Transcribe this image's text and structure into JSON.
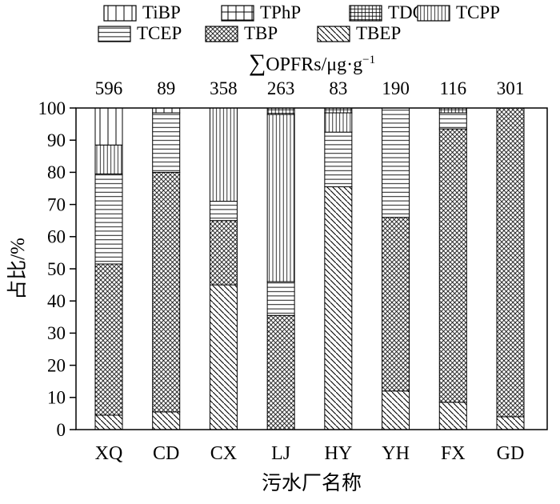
{
  "figure": {
    "background": "#ffffff",
    "ink_color": "#000000"
  },
  "legend": {
    "rows": [
      [
        {
          "label": "TiBP",
          "pattern": "vertical-sparse"
        },
        {
          "label": "TPhP",
          "pattern": "grid-sparse"
        },
        {
          "label": "TDCPP",
          "pattern": "grid-dense"
        },
        {
          "label": "TCPP",
          "pattern": "vertical-dense"
        }
      ],
      [
        {
          "label": "TCEP",
          "pattern": "horizontal"
        },
        {
          "label": "TBP",
          "pattern": "diagonal-cross"
        },
        {
          "label": "TBEP",
          "pattern": "diagonal"
        }
      ]
    ]
  },
  "secondary_axis": {
    "title_sigma": "∑",
    "title_main": "OPFRs/μg·g",
    "title_superscript": "−1",
    "totals": [
      "596",
      "89",
      "358",
      "263",
      "83",
      "190",
      "116",
      "301"
    ]
  },
  "chart_data": {
    "type": "bar",
    "stacked": true,
    "title": "∑OPFRs/μg·g⁻¹",
    "xlabel": "污水厂名称",
    "ylabel": "占比/%",
    "ylim": [
      0,
      100
    ],
    "yticks": [
      0,
      10,
      20,
      30,
      40,
      50,
      60,
      70,
      80,
      90,
      100
    ],
    "grid": false,
    "legend_position": "top",
    "categories": [
      "XQ",
      "CD",
      "CX",
      "LJ",
      "HY",
      "YH",
      "FX",
      "GD"
    ],
    "totals_ug_per_g": [
      596,
      89,
      358,
      263,
      83,
      190,
      116,
      301
    ],
    "stack_order": "bottom-to-top",
    "series": [
      {
        "name": "TBEP",
        "pattern": "diagonal",
        "values": [
          4.5,
          5.5,
          45,
          0,
          75.5,
          12,
          8.5,
          4
        ]
      },
      {
        "name": "TBP",
        "pattern": "diagonal-cross",
        "values": [
          47,
          74.5,
          20,
          35.5,
          0,
          54,
          85,
          96
        ]
      },
      {
        "name": "TCEP",
        "pattern": "horizontal",
        "values": [
          28,
          18.5,
          6,
          10.5,
          17,
          34,
          5,
          0
        ]
      },
      {
        "name": "TCPP",
        "pattern": "vertical-dense",
        "values": [
          9,
          0,
          29,
          52,
          6,
          0,
          0,
          0
        ]
      },
      {
        "name": "TDCPP",
        "pattern": "grid-dense",
        "values": [
          0,
          0,
          0,
          2,
          1.5,
          0,
          1.5,
          0
        ]
      },
      {
        "name": "TPhP",
        "pattern": "grid-sparse",
        "values": [
          0,
          0,
          0,
          0,
          0,
          0,
          0,
          0
        ]
      },
      {
        "name": "TiBP",
        "pattern": "vertical-sparse",
        "values": [
          11.5,
          1.5,
          0,
          0,
          0,
          0,
          0,
          0
        ]
      }
    ]
  }
}
